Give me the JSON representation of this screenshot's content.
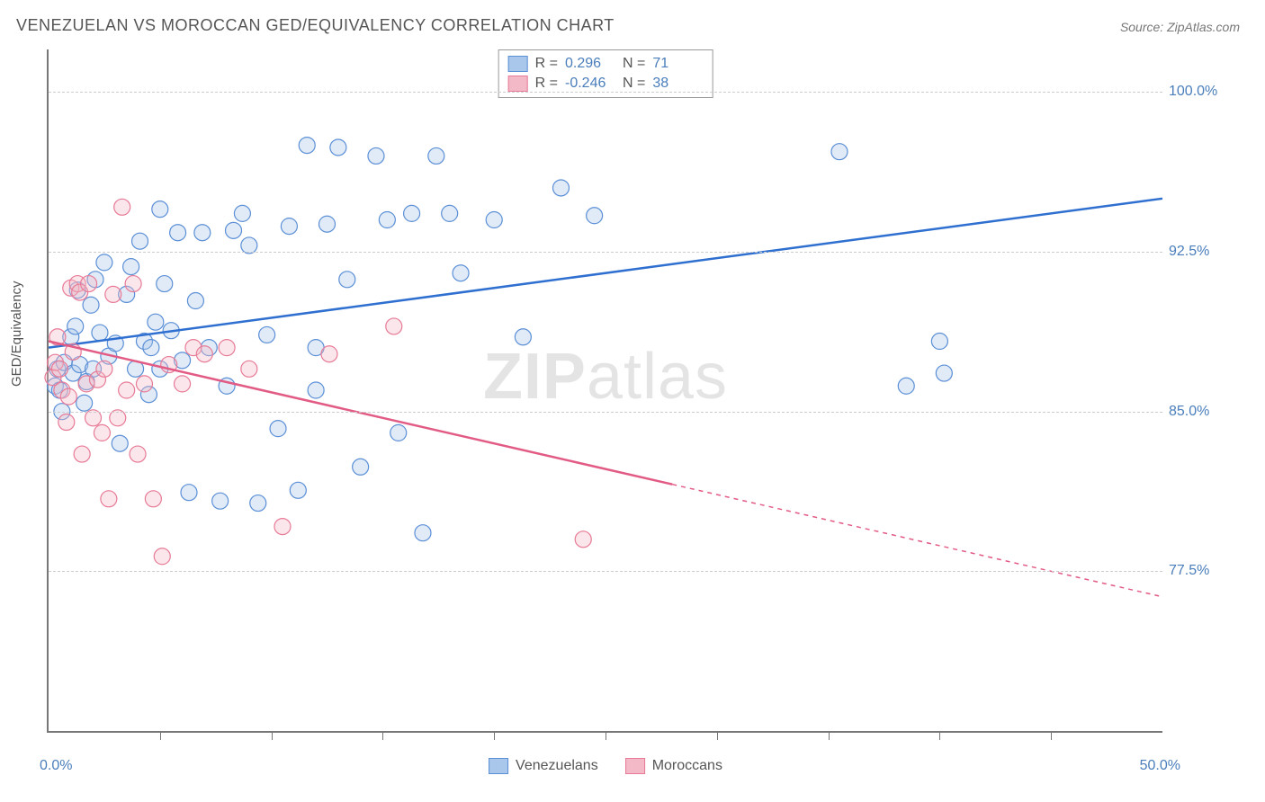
{
  "title": "VENEZUELAN VS MOROCCAN GED/EQUIVALENCY CORRELATION CHART",
  "source": "Source: ZipAtlas.com",
  "ylabel": "GED/Equivalency",
  "watermark_a": "ZIP",
  "watermark_b": "atlas",
  "chart": {
    "type": "scatter",
    "background_color": "#ffffff",
    "grid_color": "#cccccc",
    "axis_color": "#777777",
    "tick_label_color": "#4a7ebb",
    "tick_label_fontsize": 16,
    "title_fontsize": 18,
    "title_color": "#555555",
    "xlim": [
      0,
      50
    ],
    "ylim": [
      70,
      102
    ],
    "xticks_minor": [
      5,
      10,
      15,
      20,
      25,
      30,
      35,
      40,
      45
    ],
    "xticks_labeled": {
      "min": "0.0%",
      "max": "50.0%"
    },
    "yticks": [
      {
        "v": 77.5,
        "label": "77.5%"
      },
      {
        "v": 85.0,
        "label": "85.0%"
      },
      {
        "v": 92.5,
        "label": "92.5%"
      },
      {
        "v": 100.0,
        "label": "100.0%"
      }
    ],
    "marker_radius": 9,
    "marker_fill_opacity": 0.35,
    "marker_stroke_width": 1.2,
    "trend_line_width": 2.5,
    "series": [
      {
        "name": "Venezuelans",
        "color_fill": "#a9c7ea",
        "color_stroke": "#5b8fd6",
        "trend_color": "#2e6fd0",
        "R": "0.296",
        "N": "71",
        "trend": {
          "x1": 0,
          "y1": 88.0,
          "x2": 50,
          "y2": 95.0,
          "solid_to_x": 50
        },
        "points": [
          [
            0.3,
            86.2
          ],
          [
            0.4,
            87.0
          ],
          [
            0.5,
            86.0
          ],
          [
            0.6,
            85.0
          ],
          [
            0.7,
            87.3
          ],
          [
            1.0,
            88.5
          ],
          [
            1.1,
            86.8
          ],
          [
            1.2,
            89.0
          ],
          [
            1.3,
            90.7
          ],
          [
            1.4,
            87.2
          ],
          [
            1.6,
            85.4
          ],
          [
            1.7,
            86.4
          ],
          [
            1.9,
            90.0
          ],
          [
            2.0,
            87.0
          ],
          [
            2.1,
            91.2
          ],
          [
            2.3,
            88.7
          ],
          [
            2.5,
            92.0
          ],
          [
            2.7,
            87.6
          ],
          [
            3.0,
            88.2
          ],
          [
            3.2,
            83.5
          ],
          [
            3.5,
            90.5
          ],
          [
            3.7,
            91.8
          ],
          [
            3.9,
            87.0
          ],
          [
            4.1,
            93.0
          ],
          [
            4.3,
            88.3
          ],
          [
            4.5,
            85.8
          ],
          [
            4.6,
            88.0
          ],
          [
            4.8,
            89.2
          ],
          [
            5.0,
            87.0
          ],
          [
            5.2,
            91.0
          ],
          [
            5.5,
            88.8
          ],
          [
            5.8,
            93.4
          ],
          [
            6.0,
            87.4
          ],
          [
            6.3,
            81.2
          ],
          [
            6.6,
            90.2
          ],
          [
            6.9,
            93.4
          ],
          [
            7.2,
            88.0
          ],
          [
            7.7,
            80.8
          ],
          [
            8.0,
            86.2
          ],
          [
            8.3,
            93.5
          ],
          [
            8.7,
            94.3
          ],
          [
            9.0,
            92.8
          ],
          [
            9.4,
            80.7
          ],
          [
            9.8,
            88.6
          ],
          [
            10.3,
            84.2
          ],
          [
            10.8,
            93.7
          ],
          [
            11.2,
            81.3
          ],
          [
            11.6,
            97.5
          ],
          [
            12.0,
            88.0
          ],
          [
            12.5,
            93.8
          ],
          [
            13.0,
            97.4
          ],
          [
            13.4,
            91.2
          ],
          [
            14.0,
            82.4
          ],
          [
            14.7,
            97.0
          ],
          [
            15.2,
            94.0
          ],
          [
            15.7,
            84.0
          ],
          [
            16.3,
            94.3
          ],
          [
            16.8,
            79.3
          ],
          [
            17.4,
            97.0
          ],
          [
            18.0,
            94.3
          ],
          [
            18.5,
            91.5
          ],
          [
            20.0,
            94.0
          ],
          [
            21.3,
            88.5
          ],
          [
            23.0,
            95.5
          ],
          [
            24.5,
            94.2
          ],
          [
            35.5,
            97.2
          ],
          [
            38.5,
            86.2
          ],
          [
            40.0,
            88.3
          ],
          [
            40.2,
            86.8
          ],
          [
            12.0,
            86.0
          ],
          [
            5.0,
            94.5
          ]
        ]
      },
      {
        "name": "Moroccans",
        "color_fill": "#f3b9c6",
        "color_stroke": "#e77a97",
        "trend_color": "#e25b84",
        "R": "-0.246",
        "N": "38",
        "trend": {
          "x1": 0,
          "y1": 88.3,
          "x2": 50,
          "y2": 76.3,
          "solid_to_x": 28
        },
        "points": [
          [
            0.2,
            86.6
          ],
          [
            0.3,
            87.3
          ],
          [
            0.4,
            88.5
          ],
          [
            0.5,
            87.0
          ],
          [
            0.6,
            86.0
          ],
          [
            0.8,
            84.5
          ],
          [
            0.9,
            85.7
          ],
          [
            1.0,
            90.8
          ],
          [
            1.1,
            87.8
          ],
          [
            1.3,
            91.0
          ],
          [
            1.4,
            90.6
          ],
          [
            1.5,
            83.0
          ],
          [
            1.7,
            86.3
          ],
          [
            1.8,
            91.0
          ],
          [
            2.0,
            84.7
          ],
          [
            2.2,
            86.5
          ],
          [
            2.4,
            84.0
          ],
          [
            2.5,
            87.0
          ],
          [
            2.7,
            80.9
          ],
          [
            2.9,
            90.5
          ],
          [
            3.1,
            84.7
          ],
          [
            3.3,
            94.6
          ],
          [
            3.5,
            86.0
          ],
          [
            3.8,
            91.0
          ],
          [
            4.0,
            83.0
          ],
          [
            4.3,
            86.3
          ],
          [
            4.7,
            80.9
          ],
          [
            5.1,
            78.2
          ],
          [
            5.4,
            87.2
          ],
          [
            6.0,
            86.3
          ],
          [
            6.5,
            88.0
          ],
          [
            7.0,
            87.7
          ],
          [
            8.0,
            88.0
          ],
          [
            9.0,
            87.0
          ],
          [
            10.5,
            79.6
          ],
          [
            12.6,
            87.7
          ],
          [
            15.5,
            89.0
          ],
          [
            24.0,
            79.0
          ]
        ]
      }
    ]
  },
  "legend_bottom": [
    {
      "label": "Venezuelans",
      "fill": "#a9c7ea",
      "stroke": "#5b8fd6"
    },
    {
      "label": "Moroccans",
      "fill": "#f3b9c6",
      "stroke": "#e77a97"
    }
  ]
}
